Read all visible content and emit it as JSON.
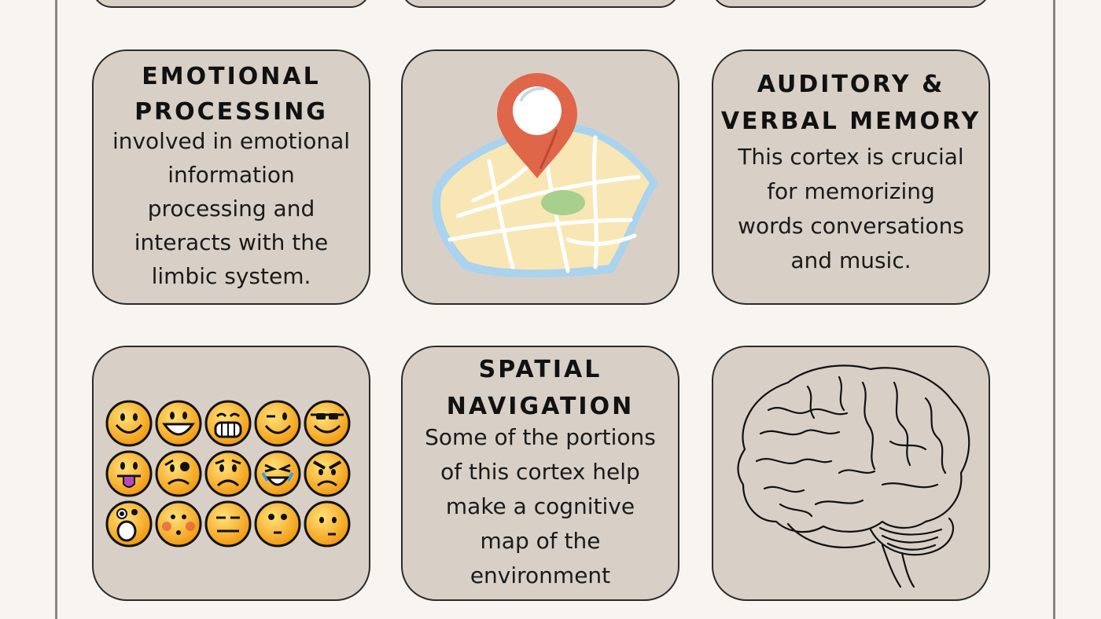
{
  "cards": {
    "emotional": {
      "title_line1": "EMOTIONAL",
      "title_line2": "PROCESSING",
      "body": [
        "involved in emotional",
        "information",
        "processing and",
        "interacts with the",
        "limbic system."
      ]
    },
    "auditory": {
      "title_line1": "AUDITORY &",
      "title_line2": "VERBAL MEMORY",
      "body": [
        "This cortex is crucial",
        "for memorizing",
        "words conversations",
        "and music."
      ]
    },
    "spatial": {
      "title_line1": "SPATIAL",
      "title_line2": "NAVIGATION",
      "body": [
        "Some of the portions",
        "of this cortex help",
        "make a cognitive",
        "map of the",
        "environment"
      ]
    }
  },
  "images": {
    "map": "map-with-location-pin-icon",
    "emoticons": "emoticon-faces-grid",
    "brain": "brain-line-drawing"
  },
  "colors": {
    "background": "#f8f5f0",
    "card": "#d8d0c6",
    "card_border": "#2b2b2b",
    "pin": "#e0664a",
    "emoticon": "#f4a81d"
  }
}
